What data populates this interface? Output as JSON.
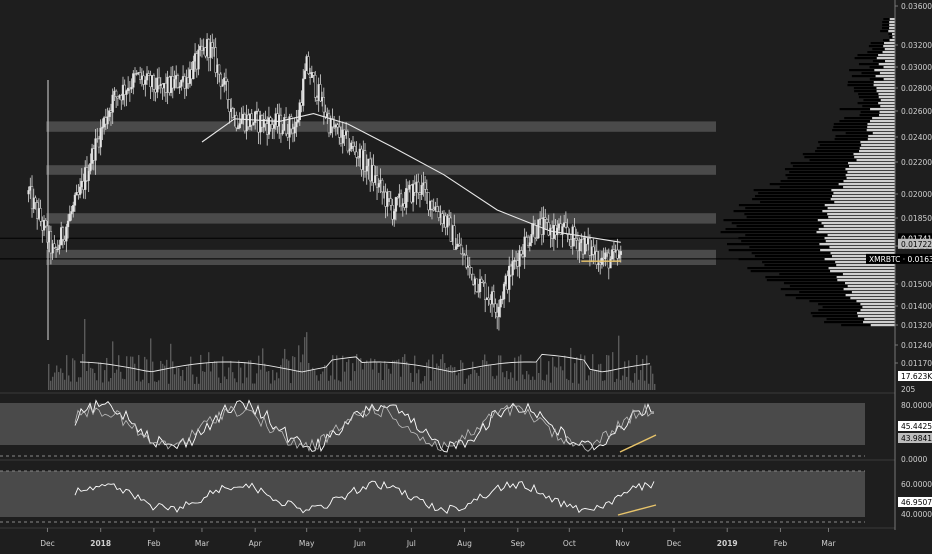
{
  "chart_data": {
    "type": "candlestick",
    "symbol": "XMRBTC",
    "price_axis": {
      "ticks": [
        "0.036000",
        "0.032000",
        "0.030000",
        "0.028000",
        "0.026000",
        "0.024000",
        "0.022000",
        "0.020000",
        "0.018500",
        "0.017000",
        "0.015000",
        "0.014000",
        "0.013200",
        "0.012400",
        "0.011700"
      ],
      "range": [
        0.0125,
        0.0362
      ],
      "current_label": "XMRBTC · 0.016322",
      "current_value": 0.016322,
      "ma_label": "0.017226",
      "ma_value": 0.017226,
      "level_label": "0.017415",
      "level_value": 0.017415
    },
    "time_axis": {
      "labels": [
        "Dec",
        "2018",
        "Feb",
        "Mar",
        "Apr",
        "May",
        "Jun",
        "Jul",
        "Aug",
        "Sep",
        "Oct",
        "Nov",
        "Dec",
        "2019",
        "Feb",
        "Mar"
      ],
      "range": [
        "2017-11-15",
        "2019-03-31"
      ]
    },
    "zones": [
      {
        "from": 0.0244,
        "to": 0.0252
      },
      {
        "from": 0.0212,
        "to": 0.0218
      },
      {
        "from": 0.0182,
        "to": 0.0188
      },
      {
        "from": 0.016,
        "to": 0.0168
      }
    ],
    "key_dates": [
      {
        "date": "2017-11-20",
        "close": 0.02
      },
      {
        "date": "2017-12-05",
        "close": 0.0165
      },
      {
        "date": "2017-12-20",
        "close": 0.02
      },
      {
        "date": "2018-01-08",
        "close": 0.027
      },
      {
        "date": "2018-01-22",
        "close": 0.029
      },
      {
        "date": "2018-02-05",
        "close": 0.0278
      },
      {
        "date": "2018-02-20",
        "close": 0.029
      },
      {
        "date": "2018-03-05",
        "close": 0.032
      },
      {
        "date": "2018-03-20",
        "close": 0.0255
      },
      {
        "date": "2018-04-10",
        "close": 0.025
      },
      {
        "date": "2018-04-25",
        "close": 0.0248
      },
      {
        "date": "2018-05-01",
        "close": 0.03
      },
      {
        "date": "2018-05-15",
        "close": 0.0248
      },
      {
        "date": "2018-06-01",
        "close": 0.0225
      },
      {
        "date": "2018-06-20",
        "close": 0.019
      },
      {
        "date": "2018-07-05",
        "close": 0.0205
      },
      {
        "date": "2018-07-20",
        "close": 0.0185
      },
      {
        "date": "2018-08-05",
        "close": 0.0155
      },
      {
        "date": "2018-08-20",
        "close": 0.014
      },
      {
        "date": "2018-09-01",
        "close": 0.0165
      },
      {
        "date": "2018-09-10",
        "close": 0.018
      },
      {
        "date": "2018-09-25",
        "close": 0.0178
      },
      {
        "date": "2018-10-08",
        "close": 0.0172
      },
      {
        "date": "2018-10-20",
        "close": 0.0163
      },
      {
        "date": "2018-10-31",
        "close": 0.0163
      }
    ],
    "ma_line": [
      {
        "date": "2018-03-01",
        "value": 0.0236
      },
      {
        "date": "2018-03-20",
        "value": 0.0254
      },
      {
        "date": "2018-04-15",
        "value": 0.0252
      },
      {
        "date": "2018-05-05",
        "value": 0.0258
      },
      {
        "date": "2018-05-25",
        "value": 0.025
      },
      {
        "date": "2018-06-20",
        "value": 0.0232
      },
      {
        "date": "2018-07-20",
        "value": 0.0212
      },
      {
        "date": "2018-08-20",
        "value": 0.019
      },
      {
        "date": "2018-09-20",
        "value": 0.0178
      },
      {
        "date": "2018-10-31",
        "value": 0.0172
      }
    ],
    "support_line": {
      "from": "2018-10-08",
      "to": "2018-10-31",
      "value": 0.0162
    },
    "volume": {
      "label": "17.623K",
      "value": 17623,
      "tick_partial": "205"
    },
    "oscillator1": {
      "ticks": [
        "80.0000",
        "0.0000"
      ],
      "range": [
        0,
        100
      ],
      "label_a": "45.4425",
      "label_b": "43.9841",
      "value_a": 45.4425,
      "value_b": 43.9841
    },
    "oscillator2": {
      "ticks": [
        "60.0000",
        "40.0000"
      ],
      "range": [
        25,
        75
      ],
      "label": "46.9507",
      "value": 46.9507
    }
  }
}
